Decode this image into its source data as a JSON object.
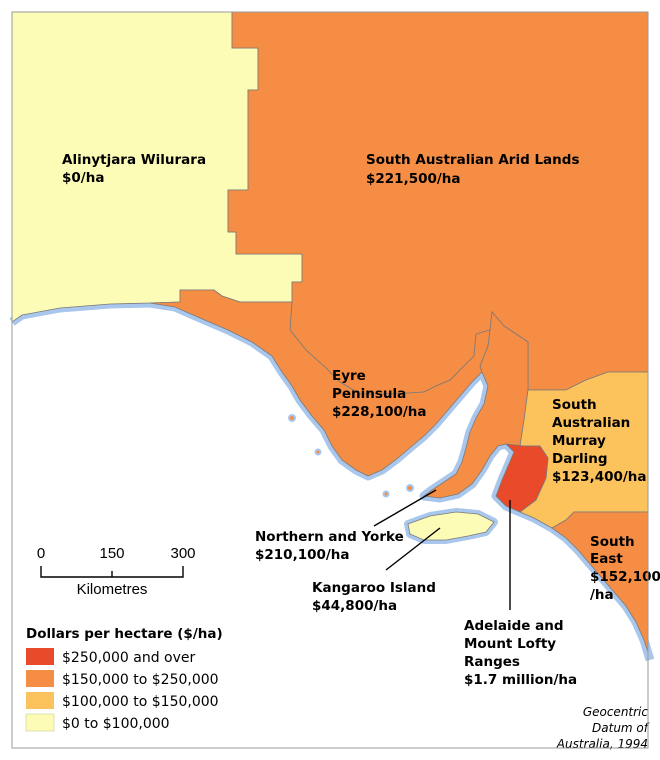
{
  "colors": {
    "over_250k": "#e84a2a",
    "range_150_250k": "#f58d44",
    "range_100_150k": "#fcc25c",
    "range_0_100k": "#fcfcb6",
    "coast_halo": "#a9c7ec",
    "border": "#7a7a7a",
    "sea": "#ffffff"
  },
  "regions": [
    {
      "name": "Alinytjara Wilurara",
      "value": "$0/ha"
    },
    {
      "name": "South Australian Arid Lands",
      "value": "$221,500/ha"
    },
    {
      "name_lines": [
        "Eyre",
        "Peninsula"
      ],
      "value": "$228,100/ha"
    },
    {
      "name_lines": [
        "South",
        "Australian",
        "Murray",
        "Darling"
      ],
      "value": "$123,400/ha"
    },
    {
      "name": "Northern and Yorke",
      "value": "$210,100/ha"
    },
    {
      "name": "Kangaroo Island",
      "value": "$44,800/ha"
    },
    {
      "name_lines": [
        "South",
        "East"
      ],
      "value_lines": [
        "$152,100",
        "/ha"
      ]
    },
    {
      "name_lines": [
        "Adelaide and",
        "Mount Lofty",
        "Ranges"
      ],
      "value": "$1.7 million/ha"
    }
  ],
  "scale_bar": {
    "ticks": [
      "0",
      "150",
      "300"
    ],
    "unit": "Kilometres"
  },
  "legend": {
    "title": "Dollars per hectare ($/ha)",
    "items": [
      {
        "label": "$250,000 and over",
        "color": "#e84a2a"
      },
      {
        "label": "$150,000 to $250,000",
        "color": "#f58d44"
      },
      {
        "label": "$100,000 to $150,000",
        "color": "#fcc25c"
      },
      {
        "label": "$0 to $100,000",
        "color": "#fcfcb6"
      }
    ]
  },
  "credit": [
    "Geocentric",
    "Datum of",
    "Australia, 1994"
  ]
}
